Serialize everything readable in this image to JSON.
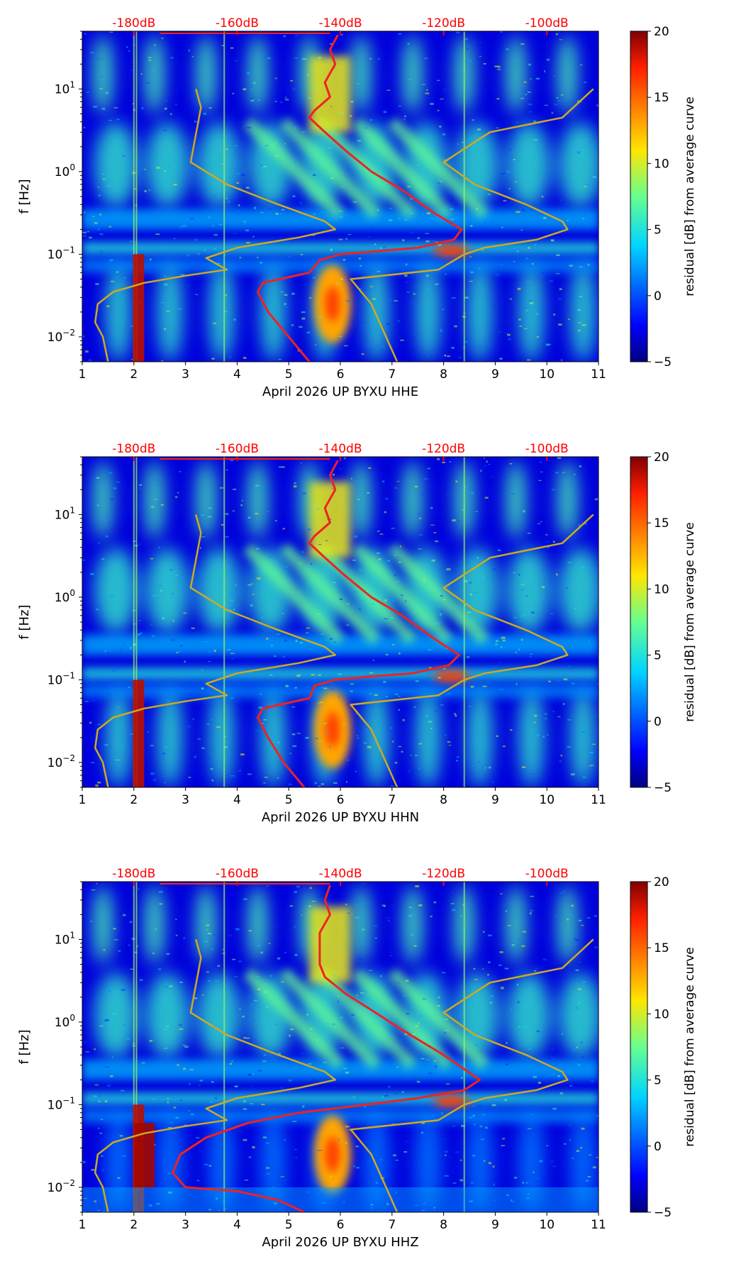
{
  "chart_data": [
    {
      "type": "heatmap",
      "xlabel": "April 2026 UP BYXU  HHE",
      "ylabel": "f [Hz]",
      "xlim": [
        1,
        11
      ],
      "ylim": [
        0.005,
        50
      ],
      "x_ticks": [
        "1",
        "2",
        "3",
        "4",
        "5",
        "6",
        "7",
        "8",
        "9",
        "10",
        "11"
      ],
      "y_ticks": [
        {
          "value": 0.01,
          "base": "10",
          "exp": "−2"
        },
        {
          "value": 0.1,
          "base": "10",
          "exp": "−1"
        },
        {
          "value": 1,
          "base": "10",
          "exp": "0"
        },
        {
          "value": 10,
          "base": "10",
          "exp": "1"
        }
      ],
      "top_axis_labels": [
        {
          "label": "-180dB",
          "x": 2
        },
        {
          "label": "-160dB",
          "x": 4
        },
        {
          "label": "-140dB",
          "x": 6
        },
        {
          "label": "-120dB",
          "x": 8
        },
        {
          "label": "-100dB",
          "x": 10
        }
      ],
      "colorbar": {
        "label": "residual [dB] from average curve",
        "range": [
          -5,
          20
        ],
        "ticks": [
          "−5",
          "0",
          "5",
          "10",
          "15",
          "20"
        ]
      },
      "series": [
        {
          "name": "average PSD curve",
          "color": "#ee2222",
          "points": [
            [
              5.95,
              45
            ],
            [
              5.8,
              30
            ],
            [
              5.9,
              20
            ],
            [
              5.7,
              12
            ],
            [
              5.8,
              8
            ],
            [
              5.5,
              5.5
            ],
            [
              5.4,
              4.5
            ],
            [
              5.7,
              3
            ],
            [
              6.1,
              1.8
            ],
            [
              6.6,
              1.0
            ],
            [
              7.2,
              0.6
            ],
            [
              7.8,
              0.32
            ],
            [
              8.35,
              0.2
            ],
            [
              8.2,
              0.15
            ],
            [
              7.5,
              0.12
            ],
            [
              6.8,
              0.11
            ],
            [
              6.0,
              0.1
            ],
            [
              5.6,
              0.085
            ],
            [
              5.4,
              0.06
            ],
            [
              4.5,
              0.045
            ],
            [
              4.4,
              0.035
            ],
            [
              4.6,
              0.02
            ],
            [
              5.0,
              0.01
            ],
            [
              5.4,
              0.005
            ]
          ]
        },
        {
          "name": "noise model curve",
          "color": "#ccaa22",
          "points": [
            [
              3.2,
              10
            ],
            [
              3.3,
              6
            ],
            [
              3.1,
              1.3
            ],
            [
              3.8,
              0.7
            ],
            [
              4.8,
              0.4
            ],
            [
              5.7,
              0.25
            ],
            [
              5.9,
              0.2
            ],
            [
              5.2,
              0.16
            ],
            [
              4.0,
              0.12
            ],
            [
              3.4,
              0.09
            ],
            [
              3.8,
              0.065
            ],
            [
              3.0,
              0.055
            ],
            [
              2.2,
              0.045
            ],
            [
              1.6,
              0.035
            ],
            [
              1.3,
              0.025
            ],
            [
              1.25,
              0.015
            ],
            [
              1.4,
              0.01
            ],
            [
              1.5,
              0.005
            ]
          ]
        },
        {
          "name": "noise model curve (high)",
          "color": "#ccaa22",
          "points": [
            [
              10.9,
              10
            ],
            [
              10.3,
              4.5
            ],
            [
              8.9,
              3
            ],
            [
              8.0,
              1.3
            ],
            [
              8.6,
              0.7
            ],
            [
              9.6,
              0.4
            ],
            [
              10.3,
              0.25
            ],
            [
              10.4,
              0.2
            ],
            [
              9.8,
              0.15
            ],
            [
              8.8,
              0.12
            ],
            [
              8.4,
              0.1
            ],
            [
              7.9,
              0.065
            ],
            [
              6.2,
              0.05
            ],
            [
              6.6,
              0.025
            ],
            [
              7.1,
              0.005
            ]
          ]
        }
      ]
    },
    {
      "type": "heatmap",
      "xlabel": "April 2026 UP BYXU  HHN",
      "ylabel": "f [Hz]",
      "xlim": [
        1,
        11
      ],
      "ylim": [
        0.005,
        50
      ],
      "x_ticks": [
        "1",
        "2",
        "3",
        "4",
        "5",
        "6",
        "7",
        "8",
        "9",
        "10",
        "11"
      ],
      "y_ticks": [
        {
          "value": 0.01,
          "base": "10",
          "exp": "−2"
        },
        {
          "value": 0.1,
          "base": "10",
          "exp": "−1"
        },
        {
          "value": 1,
          "base": "10",
          "exp": "0"
        },
        {
          "value": 10,
          "base": "10",
          "exp": "1"
        }
      ],
      "top_axis_labels": [
        {
          "label": "-180dB",
          "x": 2
        },
        {
          "label": "-160dB",
          "x": 4
        },
        {
          "label": "-140dB",
          "x": 6
        },
        {
          "label": "-120dB",
          "x": 8
        },
        {
          "label": "-100dB",
          "x": 10
        }
      ],
      "colorbar": {
        "label": "residual [dB] from average curve",
        "range": [
          -5,
          20
        ],
        "ticks": [
          "−5",
          "0",
          "5",
          "10",
          "15",
          "20"
        ]
      },
      "series": [
        {
          "name": "average PSD curve",
          "color": "#ee2222",
          "points": [
            [
              5.95,
              45
            ],
            [
              5.8,
              30
            ],
            [
              5.9,
              20
            ],
            [
              5.7,
              12
            ],
            [
              5.8,
              8
            ],
            [
              5.5,
              5.5
            ],
            [
              5.4,
              4.5
            ],
            [
              5.7,
              3
            ],
            [
              6.1,
              1.8
            ],
            [
              6.6,
              1.0
            ],
            [
              7.2,
              0.6
            ],
            [
              7.8,
              0.32
            ],
            [
              8.3,
              0.2
            ],
            [
              8.1,
              0.15
            ],
            [
              7.4,
              0.12
            ],
            [
              6.6,
              0.11
            ],
            [
              5.9,
              0.1
            ],
            [
              5.5,
              0.085
            ],
            [
              5.4,
              0.06
            ],
            [
              4.5,
              0.045
            ],
            [
              4.4,
              0.035
            ],
            [
              4.6,
              0.02
            ],
            [
              4.9,
              0.01
            ],
            [
              5.3,
              0.005
            ]
          ]
        },
        {
          "name": "noise model curve",
          "color": "#ccaa22",
          "points": [
            [
              3.2,
              10
            ],
            [
              3.3,
              6
            ],
            [
              3.1,
              1.3
            ],
            [
              3.8,
              0.7
            ],
            [
              4.8,
              0.4
            ],
            [
              5.7,
              0.25
            ],
            [
              5.9,
              0.2
            ],
            [
              5.2,
              0.16
            ],
            [
              4.0,
              0.12
            ],
            [
              3.4,
              0.09
            ],
            [
              3.8,
              0.065
            ],
            [
              3.0,
              0.055
            ],
            [
              2.2,
              0.045
            ],
            [
              1.6,
              0.035
            ],
            [
              1.3,
              0.025
            ],
            [
              1.25,
              0.015
            ],
            [
              1.4,
              0.01
            ],
            [
              1.5,
              0.005
            ]
          ]
        },
        {
          "name": "noise model curve (high)",
          "color": "#ccaa22",
          "points": [
            [
              10.9,
              10
            ],
            [
              10.3,
              4.5
            ],
            [
              8.9,
              3
            ],
            [
              8.0,
              1.3
            ],
            [
              8.6,
              0.7
            ],
            [
              9.6,
              0.4
            ],
            [
              10.3,
              0.25
            ],
            [
              10.4,
              0.2
            ],
            [
              9.8,
              0.15
            ],
            [
              8.8,
              0.12
            ],
            [
              8.4,
              0.1
            ],
            [
              7.9,
              0.065
            ],
            [
              6.2,
              0.05
            ],
            [
              6.6,
              0.025
            ],
            [
              7.1,
              0.005
            ]
          ]
        }
      ]
    },
    {
      "type": "heatmap",
      "xlabel": "April 2026 UP BYXU  HHZ",
      "ylabel": "f [Hz]",
      "xlim": [
        1,
        11
      ],
      "ylim": [
        0.005,
        50
      ],
      "x_ticks": [
        "1",
        "2",
        "3",
        "4",
        "5",
        "6",
        "7",
        "8",
        "9",
        "10",
        "11"
      ],
      "y_ticks": [
        {
          "value": 0.01,
          "base": "10",
          "exp": "−2"
        },
        {
          "value": 0.1,
          "base": "10",
          "exp": "−1"
        },
        {
          "value": 1,
          "base": "10",
          "exp": "0"
        },
        {
          "value": 10,
          "base": "10",
          "exp": "1"
        }
      ],
      "top_axis_labels": [
        {
          "label": "-180dB",
          "x": 2
        },
        {
          "label": "-160dB",
          "x": 4
        },
        {
          "label": "-140dB",
          "x": 6
        },
        {
          "label": "-120dB",
          "x": 8
        },
        {
          "label": "-100dB",
          "x": 10
        }
      ],
      "colorbar": {
        "label": "residual [dB] from average curve",
        "range": [
          -5,
          20
        ],
        "ticks": [
          "−5",
          "0",
          "5",
          "10",
          "15",
          "20"
        ]
      },
      "series": [
        {
          "name": "average PSD curve",
          "color": "#ee2222",
          "points": [
            [
              5.8,
              45
            ],
            [
              5.7,
              30
            ],
            [
              5.8,
              20
            ],
            [
              5.6,
              12
            ],
            [
              5.6,
              8
            ],
            [
              5.6,
              5
            ],
            [
              5.7,
              3.5
            ],
            [
              6.1,
              2.2
            ],
            [
              6.6,
              1.4
            ],
            [
              7.2,
              0.8
            ],
            [
              8.0,
              0.4
            ],
            [
              8.7,
              0.2
            ],
            [
              8.4,
              0.15
            ],
            [
              7.5,
              0.12
            ],
            [
              6.5,
              0.1
            ],
            [
              5.2,
              0.08
            ],
            [
              4.2,
              0.06
            ],
            [
              3.4,
              0.04
            ],
            [
              2.9,
              0.025
            ],
            [
              2.75,
              0.015
            ],
            [
              3.0,
              0.01
            ],
            [
              4.0,
              0.009
            ],
            [
              4.8,
              0.007
            ],
            [
              5.3,
              0.005
            ]
          ]
        },
        {
          "name": "noise model curve",
          "color": "#ccaa22",
          "points": [
            [
              3.2,
              10
            ],
            [
              3.3,
              6
            ],
            [
              3.1,
              1.3
            ],
            [
              3.8,
              0.7
            ],
            [
              4.8,
              0.4
            ],
            [
              5.7,
              0.25
            ],
            [
              5.9,
              0.2
            ],
            [
              5.2,
              0.16
            ],
            [
              4.0,
              0.12
            ],
            [
              3.4,
              0.09
            ],
            [
              3.8,
              0.065
            ],
            [
              3.0,
              0.055
            ],
            [
              2.2,
              0.045
            ],
            [
              1.6,
              0.035
            ],
            [
              1.3,
              0.025
            ],
            [
              1.25,
              0.015
            ],
            [
              1.4,
              0.01
            ],
            [
              1.5,
              0.005
            ]
          ]
        },
        {
          "name": "noise model curve (high)",
          "color": "#ccaa22",
          "points": [
            [
              10.9,
              10
            ],
            [
              10.3,
              4.5
            ],
            [
              8.9,
              3
            ],
            [
              8.0,
              1.3
            ],
            [
              8.6,
              0.7
            ],
            [
              9.6,
              0.4
            ],
            [
              10.3,
              0.25
            ],
            [
              10.4,
              0.2
            ],
            [
              9.8,
              0.15
            ],
            [
              8.8,
              0.12
            ],
            [
              8.4,
              0.1
            ],
            [
              7.9,
              0.065
            ],
            [
              6.2,
              0.05
            ],
            [
              6.6,
              0.025
            ],
            [
              7.1,
              0.005
            ]
          ]
        }
      ]
    }
  ]
}
